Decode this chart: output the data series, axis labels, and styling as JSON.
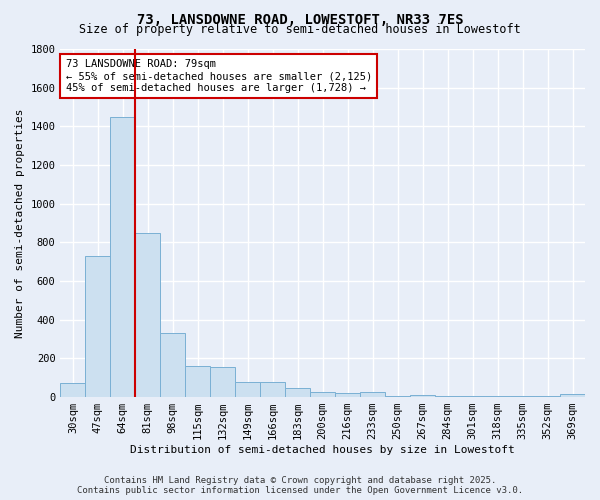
{
  "title_line1": "73, LANSDOWNE ROAD, LOWESTOFT, NR33 7ES",
  "title_line2": "Size of property relative to semi-detached houses in Lowestoft",
  "xlabel": "Distribution of semi-detached houses by size in Lowestoft",
  "ylabel": "Number of semi-detached properties",
  "categories": [
    "30sqm",
    "47sqm",
    "64sqm",
    "81sqm",
    "98sqm",
    "115sqm",
    "132sqm",
    "149sqm",
    "166sqm",
    "183sqm",
    "200sqm",
    "216sqm",
    "233sqm",
    "250sqm",
    "267sqm",
    "284sqm",
    "301sqm",
    "318sqm",
    "335sqm",
    "352sqm",
    "369sqm"
  ],
  "values": [
    75,
    730,
    1450,
    850,
    330,
    160,
    155,
    80,
    80,
    45,
    25,
    20,
    25,
    5,
    10,
    5,
    5,
    5,
    5,
    5,
    15
  ],
  "bar_color": "#cce0f0",
  "bar_edge_color": "#7ab0d4",
  "vline_x_index": 3,
  "vline_color": "#cc0000",
  "annotation_text": "73 LANSDOWNE ROAD: 79sqm\n← 55% of semi-detached houses are smaller (2,125)\n45% of semi-detached houses are larger (1,728) →",
  "annotation_box_color": "#ffffff",
  "annotation_box_edge_color": "#cc0000",
  "ylim": [
    0,
    1800
  ],
  "yticks": [
    0,
    200,
    400,
    600,
    800,
    1000,
    1200,
    1400,
    1600,
    1800
  ],
  "bg_color": "#e8eef8",
  "grid_color": "#ffffff",
  "footer_line1": "Contains HM Land Registry data © Crown copyright and database right 2025.",
  "footer_line2": "Contains public sector information licensed under the Open Government Licence v3.0.",
  "title_fontsize": 10,
  "subtitle_fontsize": 8.5,
  "axis_label_fontsize": 8,
  "tick_fontsize": 7.5,
  "annotation_fontsize": 7.5,
  "footer_fontsize": 6.5
}
